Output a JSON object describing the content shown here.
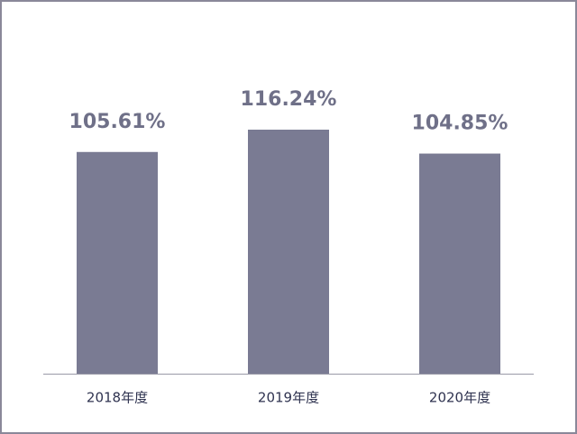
{
  "chart_data": {
    "type": "bar",
    "categories": [
      "2018年度",
      "2019年度",
      "2020年度"
    ],
    "values": [
      105.61,
      116.24,
      104.85
    ],
    "value_labels": [
      "105.61%",
      "116.24%",
      "104.85%"
    ],
    "color": "#7a7b93"
  }
}
